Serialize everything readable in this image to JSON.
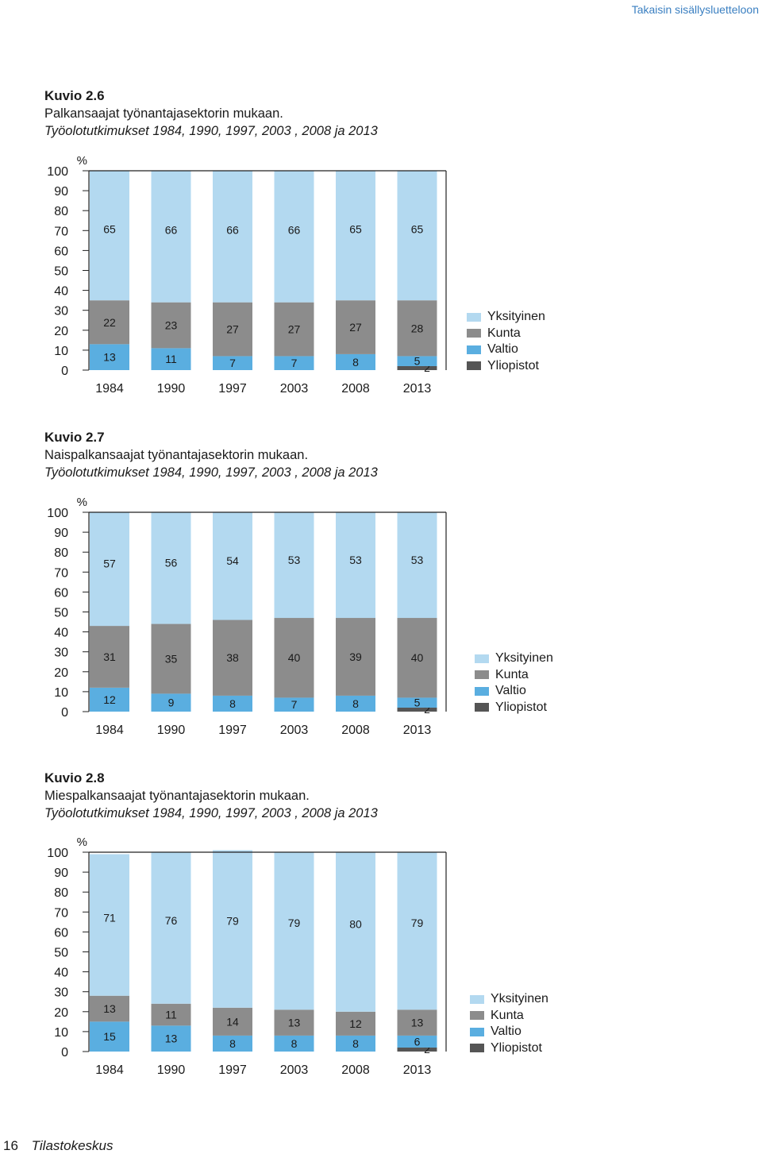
{
  "header": {
    "toc_link": "Takaisin sisällysluetteloon"
  },
  "footer": {
    "page_number": "16",
    "publisher": "Tilastokeskus"
  },
  "legend_labels": [
    "Yksityinen",
    "Kunta",
    "Valtio",
    "Yliopistot"
  ],
  "colors": {
    "Yksityinen": "#b3d9f0",
    "Kunta": "#8c8c8c",
    "Valtio": "#5aaee0",
    "Yliopistot": "#555555"
  },
  "figures": [
    {
      "number": "Kuvio 2.6",
      "title": "Palkansaajat työnantajasektorin mukaan.",
      "subtitle": "Työolotutkimukset 1984, 1990, 1997, 2003 , 2008 ja 2013"
    },
    {
      "number": "Kuvio 2.7",
      "title": "Naispalkansaajat työnantajasektorin mukaan.",
      "subtitle": "Työolotutkimukset 1984, 1990, 1997, 2003 , 2008 ja 2013"
    },
    {
      "number": "Kuvio 2.8",
      "title": "Miespalkansaajat työnantajasektorin mukaan.",
      "subtitle": "Työolotutkimukset 1984, 1990, 1997, 2003 , 2008 ja 2013"
    }
  ],
  "chart_data": [
    {
      "type": "bar",
      "stacked": true,
      "title": "Palkansaajat työnantajasektorin mukaan.",
      "ylabel": "%",
      "ylim": [
        0,
        100
      ],
      "yticks": [
        "100",
        "90",
        "80",
        "70",
        "60",
        "50",
        "40",
        "30",
        "20",
        "10",
        "0"
      ],
      "categories": [
        "1984",
        "1990",
        "1997",
        "2003",
        "2008",
        "2013"
      ],
      "series": [
        {
          "name": "Yliopistot",
          "values": [
            0,
            0,
            0,
            0,
            0,
            2
          ],
          "labels": [
            "",
            "",
            "",
            "",
            "",
            "2"
          ]
        },
        {
          "name": "Valtio",
          "values": [
            13,
            11,
            7,
            7,
            8,
            5
          ],
          "labels": [
            "13",
            "11",
            "7",
            "7",
            "8",
            "5"
          ]
        },
        {
          "name": "Kunta",
          "values": [
            22,
            23,
            27,
            27,
            27,
            28
          ],
          "labels": [
            "22",
            "23",
            "27",
            "27",
            "27",
            "28"
          ]
        },
        {
          "name": "Yksityinen",
          "values": [
            65,
            66,
            66,
            66,
            65,
            65
          ],
          "labels": [
            "65",
            "66",
            "66",
            "66",
            "65",
            "65"
          ]
        }
      ],
      "legend_position": "right"
    },
    {
      "type": "bar",
      "stacked": true,
      "title": "Naispalkansaajat työnantajasektorin mukaan.",
      "ylabel": "%",
      "ylim": [
        0,
        100
      ],
      "yticks": [
        "100",
        "90",
        "80",
        "70",
        "60",
        "50",
        "40",
        "30",
        "20",
        "10",
        "0"
      ],
      "categories": [
        "1984",
        "1990",
        "1997",
        "2003",
        "2008",
        "2013"
      ],
      "series": [
        {
          "name": "Yliopistot",
          "values": [
            0,
            0,
            0,
            0,
            0,
            2
          ],
          "labels": [
            "",
            "",
            "",
            "",
            "",
            "2"
          ]
        },
        {
          "name": "Valtio",
          "values": [
            12,
            9,
            8,
            7,
            8,
            5
          ],
          "labels": [
            "12",
            "9",
            "8",
            "7",
            "8",
            "5"
          ]
        },
        {
          "name": "Kunta",
          "values": [
            31,
            35,
            38,
            40,
            39,
            40
          ],
          "labels": [
            "31",
            "35",
            "38",
            "40",
            "39",
            "40"
          ]
        },
        {
          "name": "Yksityinen",
          "values": [
            57,
            56,
            54,
            53,
            53,
            53
          ],
          "labels": [
            "57",
            "56",
            "54",
            "53",
            "53",
            "53"
          ]
        }
      ],
      "legend_position": "right"
    },
    {
      "type": "bar",
      "stacked": true,
      "title": "Miespalkansaajat työnantajasektorin mukaan.",
      "ylabel": "%",
      "ylim": [
        0,
        100
      ],
      "yticks": [
        "100",
        "90",
        "80",
        "70",
        "60",
        "50",
        "40",
        "30",
        "20",
        "10",
        "0"
      ],
      "categories": [
        "1984",
        "1990",
        "1997",
        "2003",
        "2008",
        "2013"
      ],
      "series": [
        {
          "name": "Yliopistot",
          "values": [
            0,
            0,
            0,
            0,
            0,
            2
          ],
          "labels": [
            "",
            "",
            "",
            "",
            "",
            "2"
          ]
        },
        {
          "name": "Valtio",
          "values": [
            15,
            13,
            8,
            8,
            8,
            6
          ],
          "labels": [
            "15",
            "13",
            "8",
            "8",
            "8",
            "6"
          ]
        },
        {
          "name": "Kunta",
          "values": [
            13,
            11,
            14,
            13,
            12,
            13
          ],
          "labels": [
            "13",
            "11",
            "14",
            "13",
            "12",
            "13"
          ]
        },
        {
          "name": "Yksityinen",
          "values": [
            71,
            76,
            79,
            79,
            80,
            79
          ],
          "labels": [
            "71",
            "76",
            "79",
            "79",
            "80",
            "79"
          ]
        }
      ],
      "legend_position": "right"
    }
  ]
}
